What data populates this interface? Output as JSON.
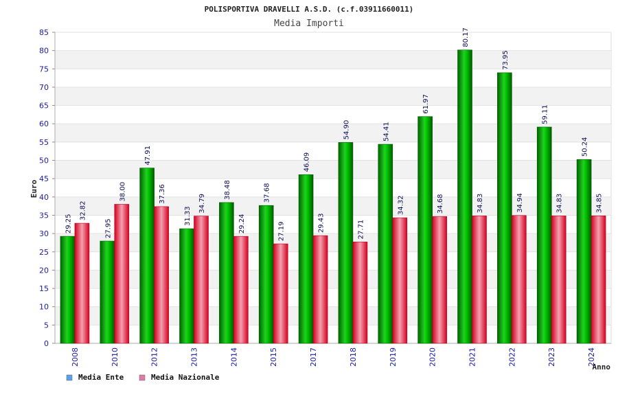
{
  "chart_data": {
    "type": "bar",
    "title": "POLISPORTIVA DRAVELLI A.S.D. (c.f.03911660011)",
    "subtitle": "Media Importi",
    "ylabel": "Euro",
    "xlabel": "Anno",
    "ylim": [
      0,
      85
    ],
    "ytick_step": 5,
    "grid": true,
    "legend_position": "bottom-left",
    "categories": [
      "2008",
      "2010",
      "2012",
      "2013",
      "2014",
      "2015",
      "2017",
      "2018",
      "2019",
      "2020",
      "2021",
      "2022",
      "2023",
      "2024"
    ],
    "series": [
      {
        "name": "Media Ente",
        "color": "#00b000",
        "legend_color": "#5aa0ea",
        "values": [
          29.25,
          27.95,
          47.91,
          31.33,
          38.48,
          37.68,
          46.09,
          54.9,
          54.41,
          61.97,
          80.17,
          73.95,
          59.11,
          50.24
        ],
        "labels": [
          "29.25",
          "27.95",
          "47.91",
          "31.33",
          "38.48",
          "37.68",
          "46.09",
          "54.90",
          "54.41",
          "61.97",
          "80.17",
          "73.95",
          "59.11",
          "50.24"
        ]
      },
      {
        "name": "Media Nazionale",
        "color": "#e8203a",
        "legend_color": "#e07aa8",
        "values": [
          32.82,
          38.0,
          37.36,
          34.79,
          29.24,
          27.19,
          29.43,
          27.71,
          34.32,
          34.68,
          34.83,
          34.94,
          34.83,
          34.85
        ],
        "labels": [
          "32.82",
          "38.00",
          "37.36",
          "34.79",
          "29.24",
          "27.19",
          "29.43",
          "27.71",
          "34.32",
          "34.68",
          "34.83",
          "34.94",
          "34.83",
          "34.85"
        ]
      }
    ]
  }
}
